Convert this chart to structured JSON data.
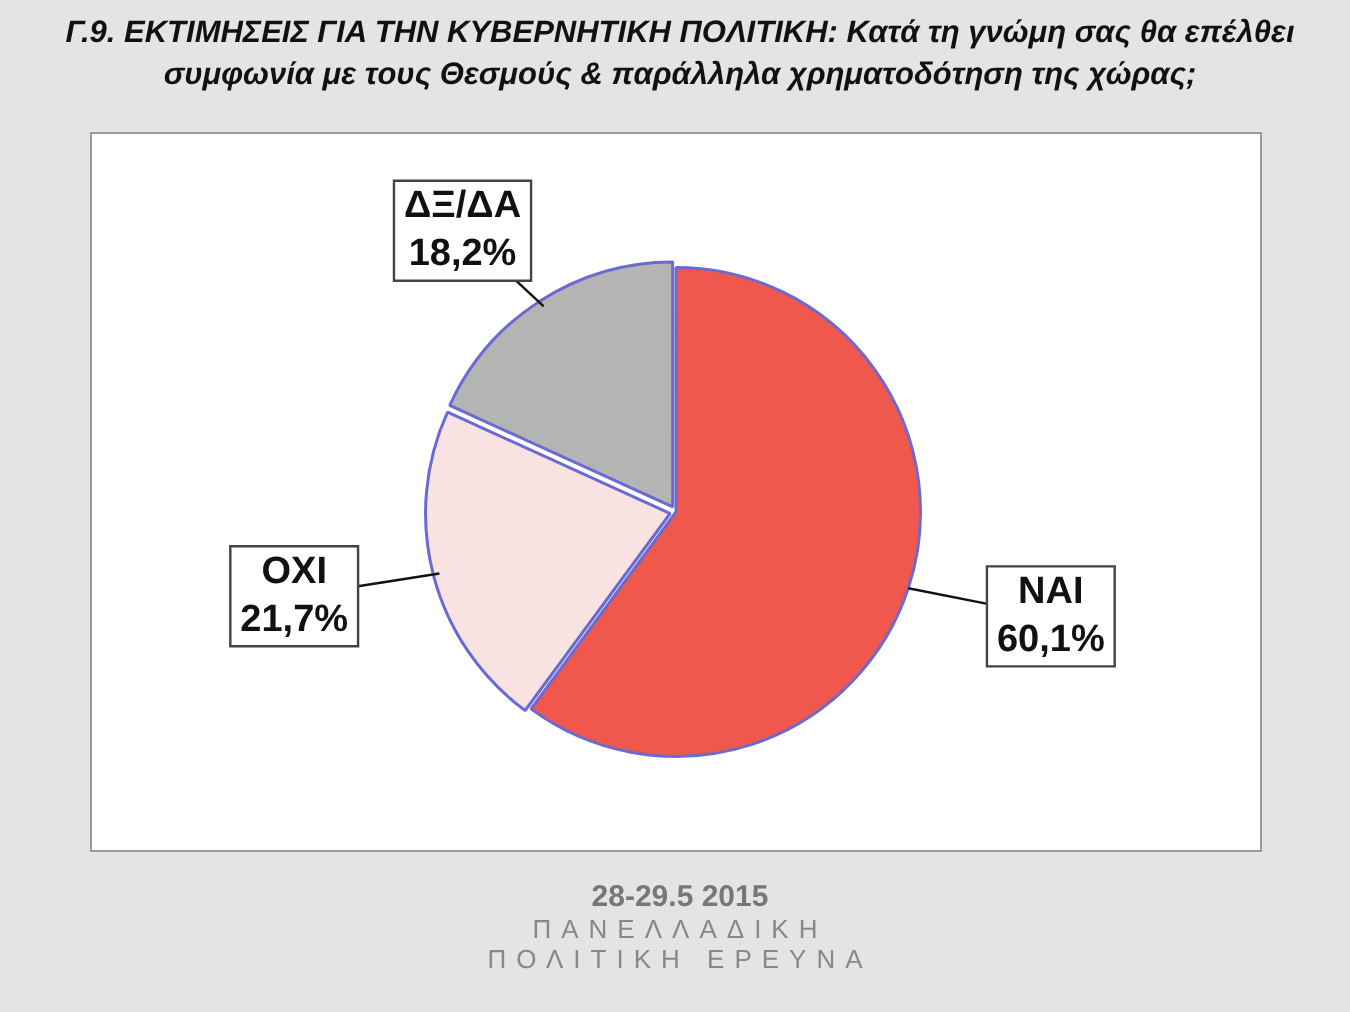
{
  "chart_data": {
    "type": "pie",
    "title": "Γ.9. ΕΚΤΙΜΗΣΕΙΣ ΓΙΑ ΤΗΝ ΚΥΒΕΡΝΗΤΙΚΗ ΠΟΛΙΤΙΚΗ: Κατά τη γνώμη σας θα επέλθει συμφωνία με τους Θεσμούς & παράλληλα χρηματοδότηση της χώρας;",
    "categories": [
      "ΝΑΙ",
      "ΟΧΙ",
      "ΔΞ/ΔΑ"
    ],
    "values": [
      60.1,
      21.7,
      18.2
    ],
    "colors": [
      "#f0584e",
      "#f9e2e2",
      "#b4b4b4"
    ],
    "value_labels": [
      "60,1%",
      "21,7%",
      "18,2%"
    ],
    "legend": false,
    "annotations": [
      "28-29.5 2015",
      "ΠΑΝΕΛΛΑΔΙΚΗ",
      "ΠΟΛΙΤΙΚΗ ΕΡΕΥΝΑ"
    ]
  }
}
